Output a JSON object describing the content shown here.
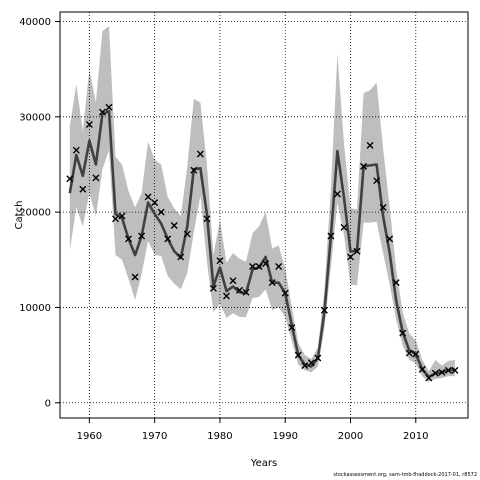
{
  "chart_data": {
    "type": "line",
    "xlabel": "Years",
    "ylabel": "Catch",
    "xlim": [
      1955.5,
      2018
    ],
    "ylim": [
      -1600,
      41000
    ],
    "x_ticks": [
      1960,
      1970,
      1980,
      1990,
      2000,
      2010
    ],
    "y_ticks": [
      0,
      10000,
      20000,
      30000,
      40000
    ],
    "grid": true,
    "colors": {
      "band": "#bebebe",
      "line": "#404040",
      "obs": "#000000",
      "grid": "#000000"
    },
    "years": [
      1957,
      1958,
      1959,
      1960,
      1961,
      1962,
      1963,
      1964,
      1965,
      1966,
      1967,
      1968,
      1969,
      1970,
      1971,
      1972,
      1973,
      1974,
      1975,
      1976,
      1977,
      1978,
      1979,
      1980,
      1981,
      1982,
      1983,
      1984,
      1985,
      1986,
      1987,
      1988,
      1989,
      1990,
      1991,
      1992,
      1993,
      1994,
      1995,
      1996,
      1997,
      1998,
      1999,
      2000,
      2001,
      2002,
      2003,
      2004,
      2005,
      2006,
      2007,
      2008,
      2009,
      2010,
      2011,
      2012,
      2013,
      2014,
      2015,
      2016
    ],
    "series": [
      {
        "name": "estimate",
        "values": [
          22000,
          26000,
          23800,
          27500,
          25000,
          30300,
          30600,
          19800,
          19400,
          17200,
          15500,
          17500,
          21000,
          19800,
          18800,
          17200,
          15900,
          15200,
          18500,
          24500,
          24600,
          19800,
          12200,
          14200,
          11700,
          12200,
          11600,
          11500,
          14000,
          14200,
          15300,
          12600,
          12600,
          11500,
          8200,
          5000,
          4000,
          3800,
          4700,
          9500,
          17500,
          26400,
          21500,
          15900,
          15900,
          24800,
          24900,
          25000,
          19600,
          15700,
          10700,
          7400,
          5500,
          5100,
          3500,
          2700,
          3100,
          3200,
          3400,
          3500
        ]
      },
      {
        "name": "lower",
        "values": [
          16000,
          20500,
          18500,
          22000,
          19500,
          24500,
          26500,
          15500,
          15000,
          13000,
          10800,
          13500,
          17000,
          15500,
          15400,
          13300,
          12500,
          11900,
          13600,
          17900,
          21700,
          14800,
          9500,
          10400,
          8900,
          9400,
          9000,
          9000,
          11000,
          11100,
          11900,
          9700,
          10000,
          9000,
          6500,
          4000,
          3400,
          3200,
          3800,
          7800,
          14200,
          21000,
          17600,
          12400,
          12300,
          18900,
          18900,
          19000,
          15700,
          12400,
          8700,
          6000,
          4500,
          4100,
          2800,
          2200,
          2500,
          2600,
          2800,
          2800
        ]
      },
      {
        "name": "upper",
        "values": [
          29000,
          33400,
          28500,
          35000,
          31500,
          39000,
          39500,
          25800,
          25000,
          22200,
          20500,
          22000,
          27400,
          25500,
          25000,
          21600,
          20400,
          19600,
          24800,
          31900,
          31500,
          25000,
          15500,
          19200,
          14700,
          15700,
          15100,
          14800,
          17800,
          18500,
          20000,
          16200,
          16500,
          14100,
          10100,
          6300,
          5000,
          4600,
          5800,
          11800,
          22500,
          36600,
          27200,
          20400,
          20300,
          32500,
          32800,
          33600,
          26700,
          20500,
          14000,
          9500,
          7300,
          6500,
          4500,
          3300,
          4500,
          3900,
          4400,
          4500
        ]
      },
      {
        "name": "observed",
        "values": [
          23500,
          26500,
          22400,
          29200,
          23600,
          30500,
          31000,
          19300,
          19600,
          17200,
          13200,
          17500,
          21600,
          21000,
          20000,
          17200,
          18600,
          15300,
          17700,
          24400,
          26100,
          19300,
          12000,
          14900,
          11200,
          12800,
          11800,
          11600,
          14300,
          14300,
          14600,
          12600,
          14300,
          11500,
          7900,
          5000,
          3900,
          4200,
          4700,
          9700,
          17500,
          21900,
          18400,
          15300,
          15900,
          24800,
          27000,
          23300,
          20500,
          17200,
          12600,
          7300,
          5200,
          5100,
          3500,
          2600,
          3100,
          3200,
          3400,
          3400
        ]
      }
    ]
  },
  "credit": "stockassessment.org, sam-tmb-fhaddock-2017-01, r8572"
}
